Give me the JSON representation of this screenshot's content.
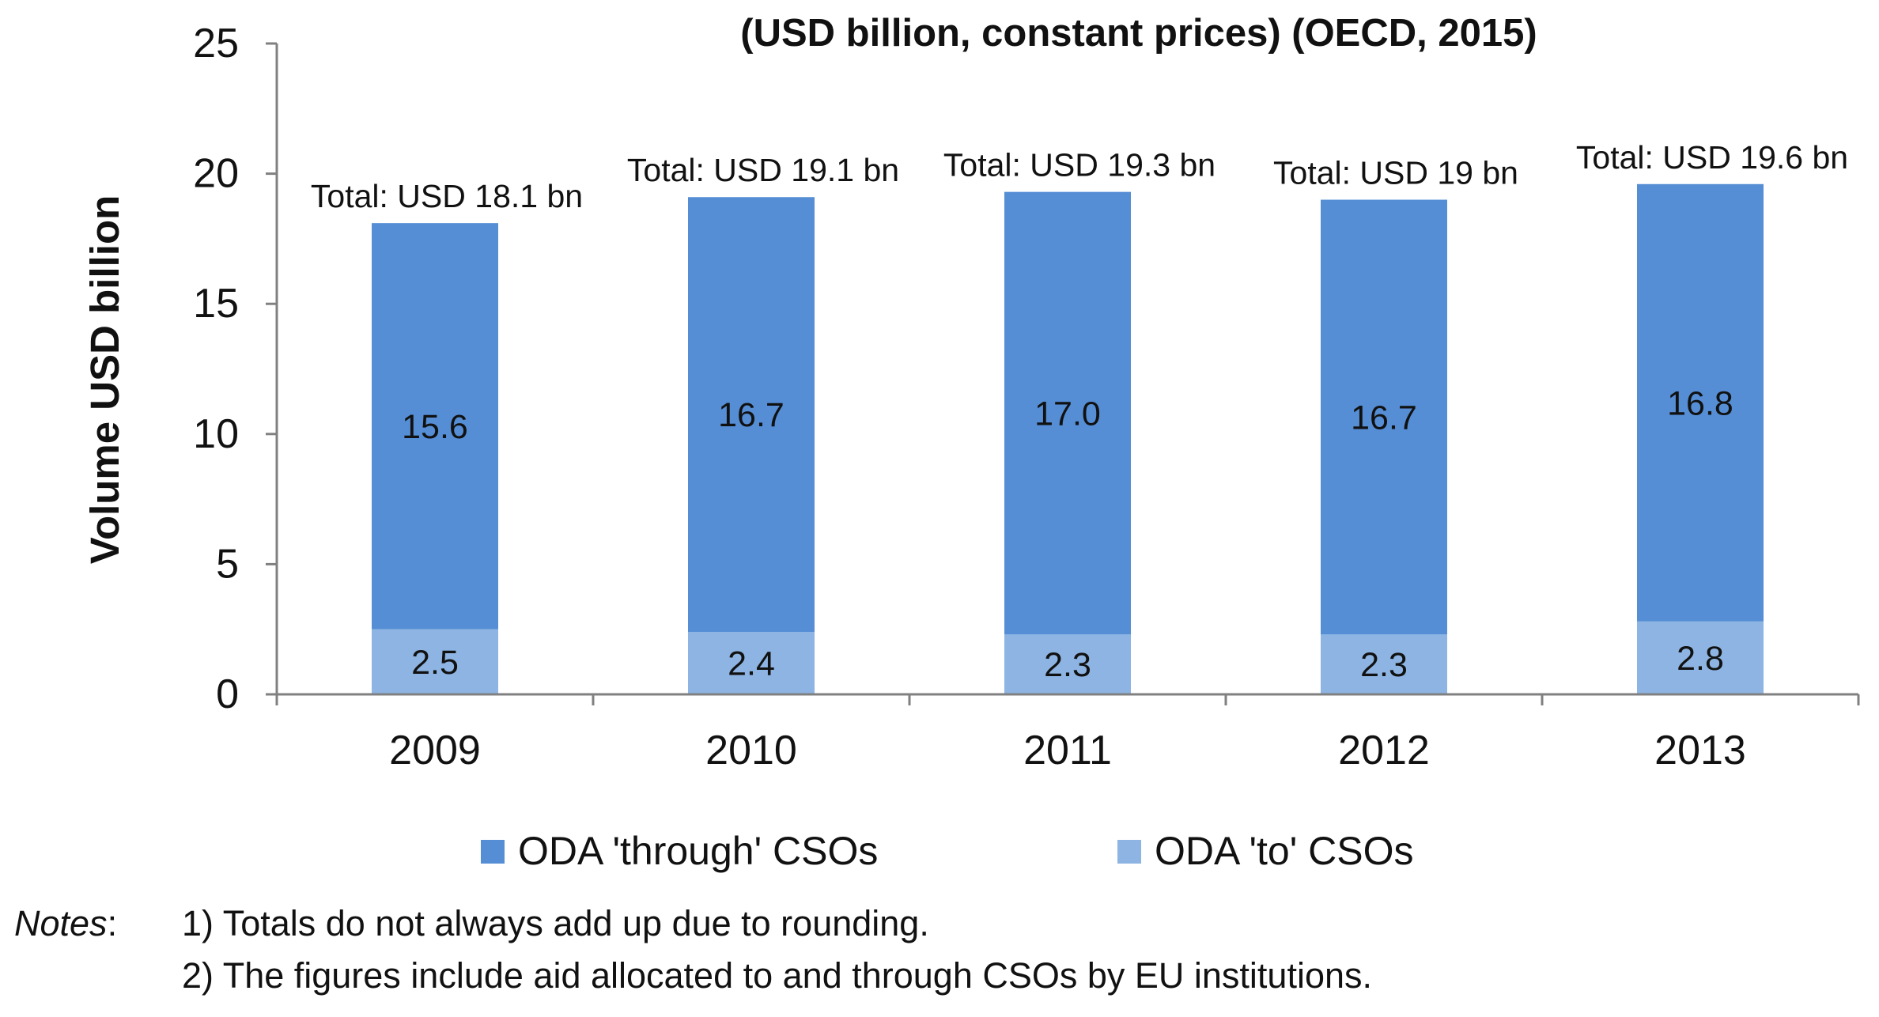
{
  "chart_data": {
    "type": "bar",
    "stacked": true,
    "title": "(USD billion, constant prices) (OECD, 2015)",
    "xlabel": "",
    "ylabel": "Volume USD billion",
    "ylim": [
      0,
      25
    ],
    "yticks": [
      0,
      5,
      10,
      15,
      20,
      25
    ],
    "grid": false,
    "legend_position": "bottom",
    "categories": [
      "2009",
      "2010",
      "2011",
      "2012",
      "2013"
    ],
    "series": [
      {
        "name": "ODA 'to' CSOs",
        "color": "#8db4e2",
        "values": [
          2.5,
          2.4,
          2.3,
          2.3,
          2.8
        ],
        "labels": [
          "2.5",
          "2.4",
          "2.3",
          "2.3",
          "2.8"
        ]
      },
      {
        "name": "ODA 'through' CSOs",
        "color": "#558ed5",
        "values": [
          15.6,
          16.7,
          17.0,
          16.7,
          16.8
        ],
        "labels": [
          "15.6",
          "16.7",
          "17.0",
          "16.7",
          "16.8"
        ]
      }
    ],
    "legend_order": [
      "ODA 'through' CSOs",
      "ODA 'to' CSOs"
    ],
    "totals": [
      18.1,
      19.1,
      19.3,
      19.0,
      19.6
    ],
    "total_labels": [
      "Total: USD 18.1 bn",
      "Total: USD 19.1 bn",
      "Total: USD 19.3 bn",
      "Total: USD 19 bn",
      "Total: USD 19.6 bn"
    ],
    "axis_color": "#808080"
  },
  "notes": {
    "label": "Notes",
    "separator": ":",
    "items": [
      "1) Totals do not always add up due to rounding.",
      "2) The figures include aid allocated to and through CSOs by EU institutions."
    ]
  }
}
